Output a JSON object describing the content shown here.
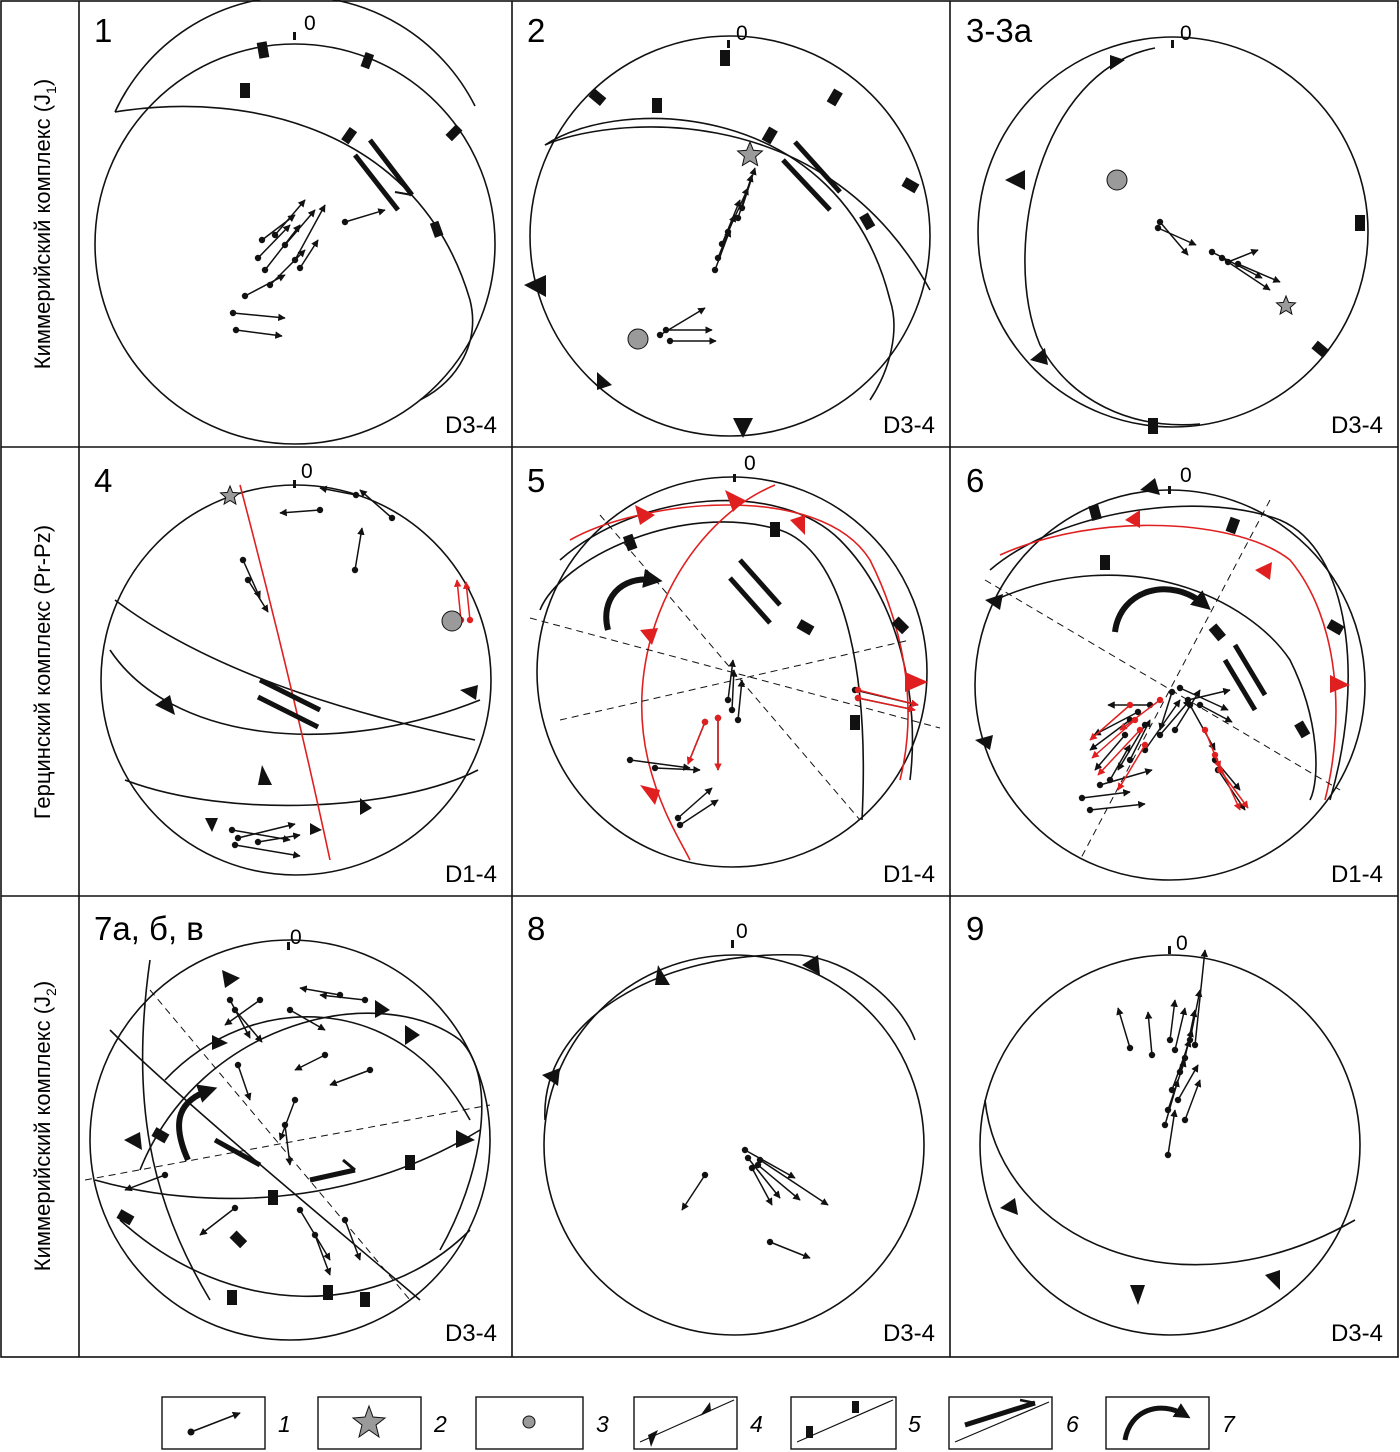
{
  "row_labels": [
    {
      "text": "Киммерийский комплекс (J",
      "sub": "1",
      "close": ")"
    },
    {
      "text": "Герцинский комплекс (Pr-Pz)",
      "sub": "",
      "close": ""
    },
    {
      "text": "Киммерийский комплекс (J",
      "sub": "2",
      "close": ")"
    }
  ],
  "panels": [
    {
      "label": "1",
      "stage": "D3-4",
      "north": "0"
    },
    {
      "label": "2",
      "stage": "D3-4",
      "north": "0"
    },
    {
      "label": "3-3а",
      "stage": "D3-4",
      "north": "0"
    },
    {
      "label": "4",
      "stage": "D1-4",
      "north": "0"
    },
    {
      "label": "5",
      "stage": "D1-4",
      "north": "0"
    },
    {
      "label": "6",
      "stage": "D1-4",
      "north": "0"
    },
    {
      "label": "7а, б, в",
      "stage": "D3-4",
      "north": "0"
    },
    {
      "label": "8",
      "stage": "D3-4",
      "north": "0"
    },
    {
      "label": "9",
      "stage": "D3-4",
      "north": "0"
    }
  ],
  "legend": [
    {
      "number": "1",
      "symbol": "slip-arrow-icon"
    },
    {
      "number": "2",
      "symbol": "star-icon"
    },
    {
      "number": "3",
      "symbol": "circle-icon"
    },
    {
      "number": "4",
      "symbol": "thrust-triangles-icon"
    },
    {
      "number": "5",
      "symbol": "normal-ticks-icon"
    },
    {
      "number": "6",
      "symbol": "strike-slip-icon"
    },
    {
      "number": "7",
      "symbol": "rotation-arrow-icon"
    }
  ],
  "colors": {
    "line": "#111111",
    "red": "#e02020",
    "marker": "#9a9a9a"
  }
}
